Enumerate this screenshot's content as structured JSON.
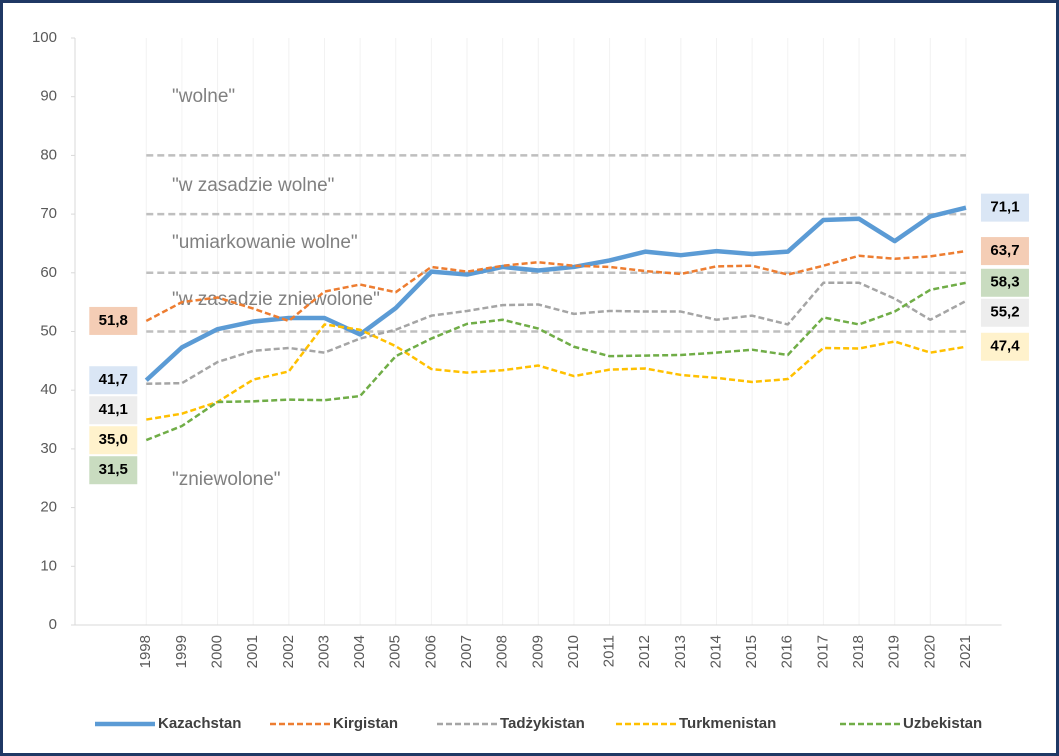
{
  "chart_data": {
    "type": "line",
    "x": [
      1998,
      1999,
      2000,
      2001,
      2002,
      2003,
      2004,
      2005,
      2006,
      2007,
      2008,
      2009,
      2010,
      2011,
      2012,
      2013,
      2014,
      2015,
      2016,
      2017,
      2018,
      2019,
      2020,
      2021
    ],
    "xlim": [
      1996,
      2022
    ],
    "xticks": [
      1998,
      1999,
      2000,
      2001,
      2002,
      2003,
      2004,
      2005,
      2006,
      2007,
      2008,
      2009,
      2010,
      2011,
      2012,
      2013,
      2014,
      2015,
      2016,
      2017,
      2018,
      2019,
      2020,
      2021
    ],
    "ylim": [
      0,
      100
    ],
    "yticks": [
      0,
      10,
      20,
      30,
      40,
      50,
      60,
      70,
      80,
      90,
      100
    ],
    "reference_lines": [
      80,
      70,
      60,
      50
    ],
    "annotations": [
      "\"wolne\"",
      "\"w zasadzie wolne\"",
      "\"umiarkowanie wolne\"",
      "\"w zasadzie zniewolone\"",
      "\"zniewolone\""
    ],
    "legend": "bottom",
    "series": [
      {
        "name": "Kazachstan",
        "color": "#5b9bd5",
        "label_color": "#dae6f5",
        "dashed": false,
        "values": [
          41.7,
          47.3,
          50.4,
          51.7,
          52.3,
          52.3,
          49.5,
          54,
          60.2,
          59.7,
          61,
          60.4,
          61,
          62.1,
          63.6,
          63,
          63.7,
          63.2,
          63.6,
          69,
          69.2,
          65.4,
          69.6,
          71.1
        ],
        "value_labels": [
          "41,7",
          null,
          null,
          null,
          null,
          null,
          null,
          null,
          null,
          null,
          null,
          null,
          null,
          null,
          null,
          null,
          null,
          null,
          null,
          null,
          null,
          null,
          null,
          "71,1"
        ]
      },
      {
        "name": "Kirgistan",
        "color": "#ed7d31",
        "label_color": "#f4cdb5",
        "dashed": true,
        "values": [
          51.8,
          55,
          55.8,
          53.9,
          51.8,
          56.8,
          58,
          56.7,
          61,
          60.2,
          61.2,
          61.8,
          61.2,
          61,
          60.3,
          59.8,
          61.1,
          61.2,
          59.7,
          61.2,
          62.9,
          62.4,
          62.8,
          63.7
        ],
        "value_labels": [
          "51,8",
          null,
          null,
          null,
          null,
          null,
          null,
          null,
          null,
          null,
          null,
          null,
          null,
          null,
          null,
          null,
          null,
          null,
          null,
          null,
          null,
          null,
          null,
          "63,7"
        ]
      },
      {
        "name": "Tadżykistan",
        "color": "#a5a5a5",
        "label_color": "#ededed",
        "dashed": true,
        "values": [
          41.1,
          41.2,
          44.8,
          46.7,
          47.2,
          46.4,
          48.8,
          50.3,
          52.7,
          53.5,
          54.5,
          54.6,
          53,
          53.5,
          53.4,
          53.4,
          52,
          52.7,
          51.2,
          58.3,
          58.3,
          55.6,
          52,
          55.2
        ],
        "value_labels": [
          "41,1",
          null,
          null,
          null,
          null,
          null,
          null,
          null,
          null,
          null,
          null,
          null,
          null,
          null,
          null,
          null,
          null,
          null,
          null,
          null,
          null,
          null,
          null,
          "55,2"
        ]
      },
      {
        "name": "Turkmenistan",
        "color": "#ffc000",
        "label_color": "#fff2cc",
        "dashed": true,
        "values": [
          35.0,
          36,
          38,
          41.8,
          43.2,
          51.2,
          50.3,
          47.5,
          43.6,
          43,
          43.4,
          44.2,
          42.4,
          43.5,
          43.7,
          42.6,
          42.1,
          41.4,
          41.9,
          47.2,
          47.1,
          48.3,
          46.4,
          47.4
        ],
        "value_labels": [
          "35,0",
          null,
          null,
          null,
          null,
          null,
          null,
          null,
          null,
          null,
          null,
          null,
          null,
          null,
          null,
          null,
          null,
          null,
          null,
          null,
          null,
          null,
          null,
          "47,4"
        ]
      },
      {
        "name": "Uzbekistan",
        "color": "#70ad47",
        "label_color": "#c9dcc0",
        "dashed": true,
        "values": [
          31.5,
          33.9,
          38,
          38.1,
          38.4,
          38.3,
          39,
          45.8,
          48.8,
          51.3,
          52,
          50.5,
          47.4,
          45.8,
          45.9,
          46,
          46.4,
          46.9,
          46,
          52.4,
          51.2,
          53.4,
          57.1,
          58.3
        ],
        "value_labels": [
          "31,5",
          null,
          null,
          null,
          null,
          null,
          null,
          null,
          null,
          null,
          null,
          null,
          null,
          null,
          null,
          null,
          null,
          null,
          null,
          null,
          null,
          null,
          null,
          "58,3"
        ]
      }
    ]
  }
}
